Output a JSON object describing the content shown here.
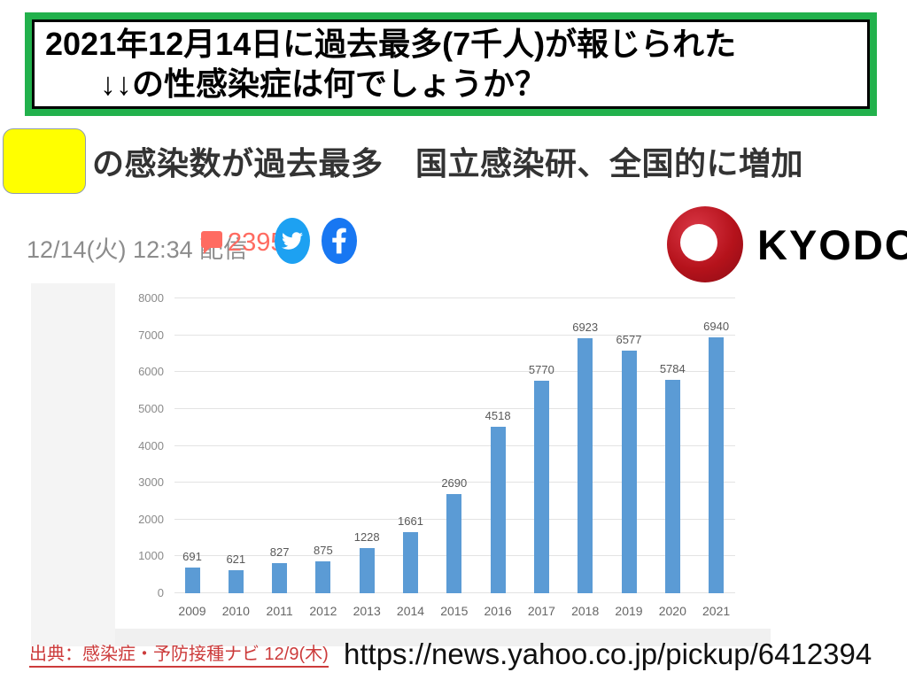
{
  "banner": {
    "line1": "2021年12月14日に過去最多(7千人)が報じられた",
    "line2": "↓↓の性感染症は何でしょうか？"
  },
  "article": {
    "headline_after_redaction": "の感染数が過去最多　国立感染研、全国的に増加",
    "date_line": "12/14(火) 12:34 配信",
    "comment_count": "2395",
    "publisher_name": "KYODO"
  },
  "chart_data": {
    "type": "bar",
    "title": "",
    "categories": [
      "2009",
      "2010",
      "2011",
      "2012",
      "2013",
      "2014",
      "2015",
      "2016",
      "2017",
      "2018",
      "2019",
      "2020",
      "2021"
    ],
    "values": [
      691,
      621,
      827,
      875,
      1228,
      1661,
      2690,
      4518,
      5770,
      6923,
      6577,
      5784,
      6940
    ],
    "xlabel": "",
    "ylabel": "",
    "ylim": [
      0,
      8000
    ],
    "yticks": [
      0,
      1000,
      2000,
      3000,
      4000,
      5000,
      6000,
      7000,
      8000
    ],
    "grid": true,
    "legend": false,
    "value_labels": true,
    "bar_color": "#5b9bd5"
  },
  "footer": {
    "source_note": "出典：感染症・予防接種ナビ 12/9(木)",
    "url": "https://news.yahoo.co.jp/pickup/6412394"
  },
  "colors": {
    "banner_border_green": "#22b14c",
    "redaction_yellow": "#ffff00",
    "comment_salmon": "#ff6b61",
    "twitter_blue": "#1da1f2",
    "facebook_blue": "#1877f2",
    "bar_blue": "#5b9bd5",
    "kyodo_red": "#b5121b",
    "source_red": "#cc3b3b"
  }
}
